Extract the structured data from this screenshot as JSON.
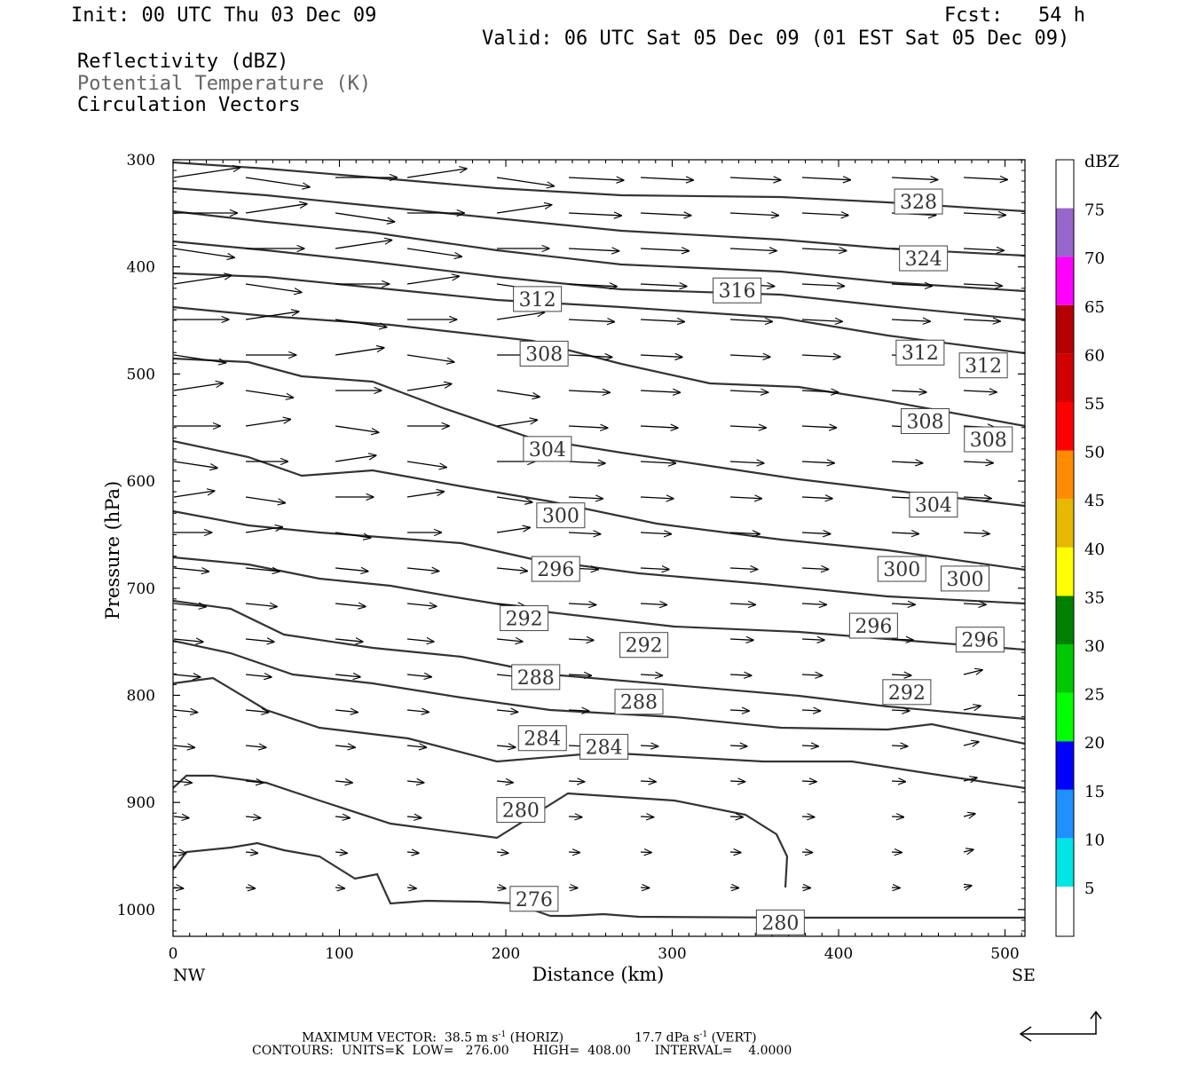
{
  "header": {
    "init": "Init: 00 UTC Thu 03 Dec 09",
    "fcst": "Fcst:   54 h",
    "valid": "Valid: 06 UTC Sat 05 Dec 09 (01 EST Sat 05 Dec 09)",
    "fields": [
      "Reflectivity (dBZ)",
      "Potential Temperature (K)",
      "Circulation Vectors"
    ]
  },
  "colors": {
    "contour": "#333333",
    "labels_grey": "#666666",
    "dbz": [
      "#00e5e5",
      "#1e90ff",
      "#0000ff",
      "#00ff00",
      "#00c800",
      "#008000",
      "#ffff00",
      "#e6b800",
      "#ff8c00",
      "#ff0000",
      "#d20000",
      "#b40000",
      "#ff00ff",
      "#9966cc"
    ]
  },
  "footer": {
    "max_vector": "MAXIMUM VECTOR:  38.5 m s",
    "sup1": "-1",
    "horiz": " (HORIZ)",
    "vert_val": "17.7 dPa s",
    "sup2": "-1",
    "vert": " (VERT)",
    "contours": "CONTOURS:  UNITS=K  LOW=   276.00      HIGH=  408.00      INTERVAL=    4.0000"
  },
  "chart_data": {
    "type": "contour",
    "xlabel": "Distance (km)",
    "ylabel": "Pressure (hPa)",
    "xlim": [
      0,
      512
    ],
    "ylim": [
      1025,
      300
    ],
    "x_ticks": [
      0,
      100,
      200,
      300,
      400,
      500
    ],
    "y_ticks": [
      300,
      400,
      500,
      600,
      700,
      800,
      900,
      1000
    ],
    "x_end_labels": {
      "left": "NW",
      "right": "SE"
    },
    "colorbar": {
      "title": "dBZ",
      "levels": [
        5,
        10,
        15,
        20,
        25,
        30,
        35,
        40,
        45,
        50,
        55,
        60,
        65,
        70,
        75
      ]
    },
    "contour_labels": [
      {
        "text": "328",
        "x": 448,
        "p": 339
      },
      {
        "text": "324",
        "x": 451,
        "p": 392
      },
      {
        "text": "316",
        "x": 339,
        "p": 422
      },
      {
        "text": "312",
        "x": 219,
        "p": 430
      },
      {
        "text": "308",
        "x": 223,
        "p": 481
      },
      {
        "text": "312",
        "x": 449,
        "p": 480
      },
      {
        "text": "312",
        "x": 487,
        "p": 492
      },
      {
        "text": "308",
        "x": 452,
        "p": 544
      },
      {
        "text": "308",
        "x": 490,
        "p": 561
      },
      {
        "text": "304",
        "x": 225,
        "p": 570
      },
      {
        "text": "304",
        "x": 457,
        "p": 622
      },
      {
        "text": "300",
        "x": 233,
        "p": 632
      },
      {
        "text": "296",
        "x": 230,
        "p": 682
      },
      {
        "text": "300",
        "x": 438,
        "p": 682
      },
      {
        "text": "300",
        "x": 476,
        "p": 691
      },
      {
        "text": "292",
        "x": 211,
        "p": 728
      },
      {
        "text": "296",
        "x": 421,
        "p": 735
      },
      {
        "text": "292",
        "x": 283,
        "p": 753
      },
      {
        "text": "296",
        "x": 485,
        "p": 748
      },
      {
        "text": "288",
        "x": 218,
        "p": 783
      },
      {
        "text": "288",
        "x": 280,
        "p": 806
      },
      {
        "text": "292",
        "x": 441,
        "p": 797
      },
      {
        "text": "284",
        "x": 222,
        "p": 840
      },
      {
        "text": "284",
        "x": 259,
        "p": 848
      },
      {
        "text": "280",
        "x": 209,
        "p": 907
      },
      {
        "text": "276",
        "x": 217,
        "p": 990
      },
      {
        "text": "280",
        "x": 365,
        "p": 1012
      }
    ]
  }
}
